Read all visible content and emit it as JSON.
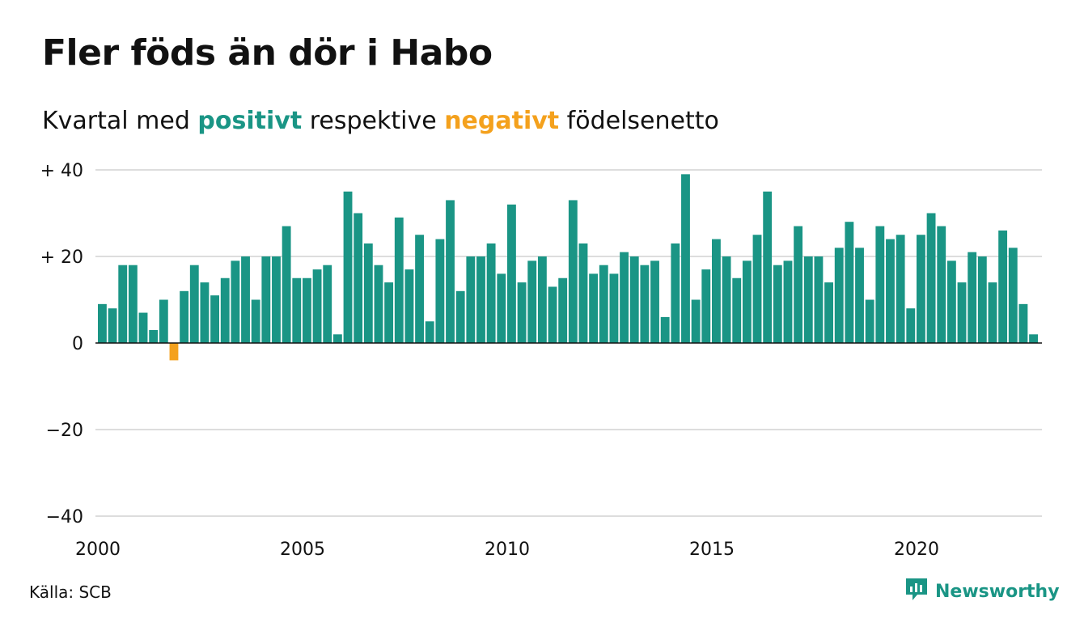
{
  "title": "Fler föds än dör i Habo",
  "subtitle": {
    "prefix": "Kvartal med ",
    "positive": "positivt",
    "middle": " respektive ",
    "negative": "negativt",
    "suffix": " födelsenetto"
  },
  "colors": {
    "positive": "#1a9585",
    "negative": "#f4a11d",
    "grid": "#dddddd",
    "axis": "#111111"
  },
  "source": "Källa: SCB",
  "brand": {
    "name": "Newsworthy",
    "icon": "newsworthy-logo-icon"
  },
  "chart_data": {
    "type": "bar",
    "title": "Fler föds än dör i Habo",
    "subtitle": "Kvartal med positivt respektive negativt födelsenetto",
    "start_year": 2000,
    "quarters_per_year": 4,
    "ylim": [
      -40,
      40
    ],
    "y_ticks": [
      {
        "value": 40,
        "label": "+ 40"
      },
      {
        "value": 20,
        "label": "+ 20"
      },
      {
        "value": 0,
        "label": "0"
      },
      {
        "value": -20,
        "label": "−20"
      },
      {
        "value": -40,
        "label": "−40"
      }
    ],
    "x_ticks": [
      "2000",
      "2005",
      "2010",
      "2015",
      "2020"
    ],
    "grid": true,
    "values": [
      9,
      8,
      18,
      18,
      7,
      3,
      10,
      -4,
      12,
      18,
      14,
      11,
      15,
      19,
      20,
      10,
      20,
      20,
      27,
      15,
      15,
      17,
      18,
      2,
      35,
      30,
      23,
      18,
      14,
      29,
      17,
      25,
      5,
      24,
      33,
      12,
      20,
      20,
      23,
      16,
      32,
      14,
      19,
      20,
      13,
      15,
      33,
      23,
      16,
      18,
      16,
      21,
      20,
      18,
      19,
      6,
      23,
      39,
      10,
      17,
      24,
      20,
      15,
      19,
      25,
      35,
      18,
      19,
      27,
      20,
      20,
      14,
      22,
      28,
      22,
      10,
      27,
      24,
      25,
      8,
      25,
      30,
      27,
      19,
      14,
      21,
      20,
      14,
      26,
      22,
      9,
      2
    ]
  }
}
